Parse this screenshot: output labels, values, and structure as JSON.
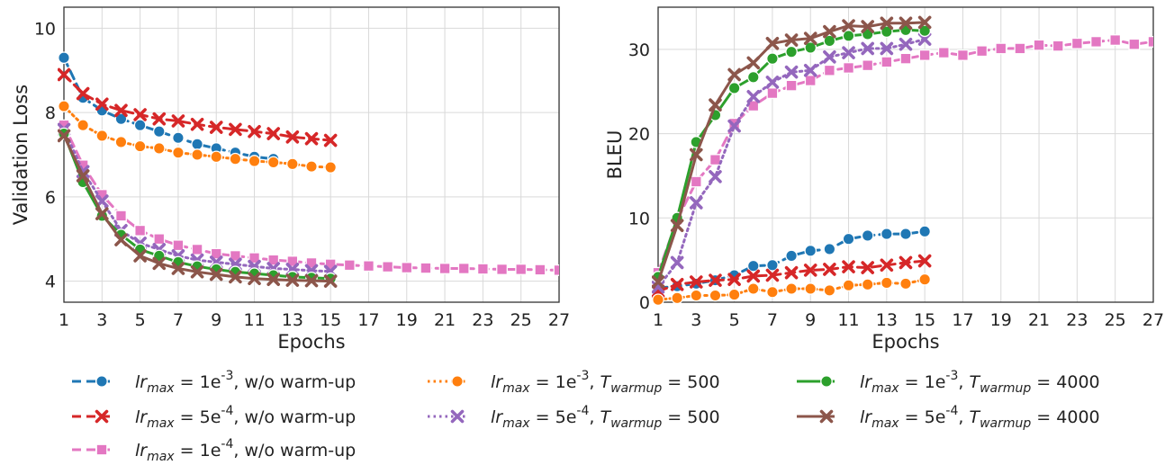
{
  "figure": {
    "legend": [
      {
        "series_id": "lr1e3_nowarm",
        "label": "lr_max = 1e^-3, w/o warm-up",
        "color": "#1f77b4",
        "marker": "circle",
        "dash": "dashed"
      },
      {
        "series_id": "lr5e4_nowarm",
        "label": "lr_max = 5e^-4, w/o warm-up",
        "color": "#d62728",
        "marker": "x",
        "dash": "dashed"
      },
      {
        "series_id": "lr1e4_nowarm",
        "label": "lr_max = 1e^-4, w/o warm-up",
        "color": "#e377c2",
        "marker": "square",
        "dash": "dashed"
      },
      {
        "series_id": "lr1e3_warm500",
        "label": "lr_max = 1e^-3, T_warmup = 500",
        "color": "#ff7f0e",
        "marker": "circle",
        "dash": "dotted"
      },
      {
        "series_id": "lr5e4_warm500",
        "label": "lr_max = 5e^-4, T_warmup = 500",
        "color": "#9467bd",
        "marker": "x",
        "dash": "dotted"
      },
      {
        "series_id": "lr1e3_warm4000",
        "label": "lr_max = 1e^-3, T_warmup = 4000",
        "color": "#2ca02c",
        "marker": "circle",
        "dash": "solid"
      },
      {
        "series_id": "lr5e4_warm4000",
        "label": "lr_max = 5e^-4, T_warmup = 4000",
        "color": "#8c564b",
        "marker": "x",
        "dash": "solid"
      }
    ]
  },
  "chart_data": [
    {
      "type": "line",
      "xlabel": "Epochs",
      "ylabel": "Validation Loss",
      "xlim": [
        1,
        27
      ],
      "ylim": [
        3.5,
        10.5
      ],
      "xticks": [
        1,
        3,
        5,
        7,
        9,
        11,
        13,
        15,
        17,
        19,
        21,
        23,
        25,
        27
      ],
      "yticks": [
        4,
        6,
        8,
        10
      ],
      "grid": true,
      "series": [
        {
          "series_id": "lr1e3_nowarm",
          "x": [
            1,
            2,
            3,
            4,
            5,
            6,
            7,
            8,
            9,
            10,
            11,
            12
          ],
          "y": [
            9.3,
            8.35,
            8.05,
            7.85,
            7.7,
            7.55,
            7.4,
            7.25,
            7.15,
            7.05,
            6.95,
            6.9
          ]
        },
        {
          "series_id": "lr5e4_nowarm",
          "x": [
            1,
            2,
            3,
            4,
            5,
            6,
            7,
            8,
            9,
            10,
            11,
            12,
            13,
            14,
            15
          ],
          "y": [
            8.9,
            8.45,
            8.2,
            8.05,
            7.95,
            7.85,
            7.8,
            7.72,
            7.65,
            7.6,
            7.55,
            7.5,
            7.42,
            7.38,
            7.34
          ]
        },
        {
          "series_id": "lr1e4_nowarm",
          "x": [
            1,
            2,
            3,
            4,
            5,
            6,
            7,
            8,
            9,
            10,
            11,
            12,
            13,
            14,
            15,
            16,
            17,
            18,
            19,
            20,
            21,
            22,
            23,
            24,
            25,
            26,
            27
          ],
          "y": [
            7.7,
            6.75,
            6.05,
            5.55,
            5.2,
            5.0,
            4.85,
            4.75,
            4.65,
            4.6,
            4.55,
            4.5,
            4.47,
            4.43,
            4.4,
            4.38,
            4.36,
            4.34,
            4.32,
            4.31,
            4.3,
            4.3,
            4.29,
            4.28,
            4.28,
            4.27,
            4.26
          ]
        },
        {
          "series_id": "lr1e3_warm500",
          "x": [
            1,
            2,
            3,
            4,
            5,
            6,
            7,
            8,
            9,
            10,
            11,
            12,
            13,
            14,
            15
          ],
          "y": [
            8.15,
            7.7,
            7.45,
            7.3,
            7.2,
            7.15,
            7.05,
            7.0,
            6.95,
            6.9,
            6.85,
            6.82,
            6.78,
            6.72,
            6.7
          ]
        },
        {
          "series_id": "lr5e4_warm500",
          "x": [
            1,
            2,
            3,
            4,
            5,
            6,
            7,
            8,
            9,
            10,
            11,
            12,
            13,
            14,
            15
          ],
          "y": [
            7.6,
            6.6,
            5.9,
            5.2,
            4.9,
            4.75,
            4.6,
            4.5,
            4.45,
            4.4,
            4.35,
            4.3,
            4.28,
            4.25,
            4.23
          ]
        },
        {
          "series_id": "lr1e3_warm4000",
          "x": [
            1,
            2,
            3,
            4,
            5,
            6,
            7,
            8,
            9,
            10,
            11,
            12,
            13,
            14,
            15
          ],
          "y": [
            7.5,
            6.35,
            5.55,
            5.1,
            4.75,
            4.6,
            4.45,
            4.35,
            4.28,
            4.22,
            4.18,
            4.14,
            4.1,
            4.08,
            4.06
          ]
        },
        {
          "series_id": "lr5e4_warm4000",
          "x": [
            1,
            2,
            3,
            4,
            5,
            6,
            7,
            8,
            9,
            10,
            11,
            12,
            13,
            14,
            15
          ],
          "y": [
            7.45,
            6.5,
            5.6,
            4.98,
            4.6,
            4.42,
            4.3,
            4.22,
            4.16,
            4.1,
            4.06,
            4.04,
            4.02,
            4.01,
            4.0
          ]
        }
      ]
    },
    {
      "type": "line",
      "xlabel": "Epochs",
      "ylabel": "BLEU",
      "xlim": [
        1,
        27
      ],
      "ylim": [
        0,
        35
      ],
      "xticks": [
        1,
        3,
        5,
        7,
        9,
        11,
        13,
        15,
        17,
        19,
        21,
        23,
        25,
        27
      ],
      "yticks": [
        0,
        10,
        20,
        30
      ],
      "grid": true,
      "series": [
        {
          "series_id": "lr1e3_nowarm",
          "x": [
            1,
            2,
            3,
            4,
            5,
            6,
            7,
            8,
            9,
            10,
            11,
            12,
            13,
            14,
            15
          ],
          "y": [
            1.7,
            1.9,
            2.2,
            2.6,
            3.2,
            4.3,
            4.4,
            5.5,
            6.1,
            6.3,
            7.5,
            7.9,
            8.1,
            8.1,
            8.4
          ]
        },
        {
          "series_id": "lr5e4_nowarm",
          "x": [
            1,
            2,
            3,
            4,
            5,
            6,
            7,
            8,
            9,
            10,
            11,
            12,
            13,
            14,
            15
          ],
          "y": [
            1.3,
            2.1,
            2.4,
            2.6,
            2.7,
            3.1,
            3.2,
            3.5,
            3.8,
            3.9,
            4.2,
            4.1,
            4.4,
            4.7,
            4.9
          ]
        },
        {
          "series_id": "lr1e4_nowarm",
          "x": [
            1,
            2,
            3,
            4,
            5,
            6,
            7,
            8,
            9,
            10,
            11,
            12,
            13,
            14,
            15,
            16,
            17,
            18,
            19,
            20,
            21,
            22,
            23,
            24,
            25,
            26,
            27
          ],
          "y": [
            3.5,
            9.8,
            14.3,
            16.9,
            21.2,
            23.3,
            24.8,
            25.7,
            26.3,
            27.5,
            27.8,
            28.1,
            28.5,
            28.9,
            29.3,
            29.6,
            29.3,
            29.8,
            30.1,
            30.1,
            30.5,
            30.4,
            30.7,
            30.9,
            31.1,
            30.6,
            30.9
          ]
        },
        {
          "series_id": "lr1e3_warm500",
          "x": [
            1,
            2,
            3,
            4,
            5,
            6,
            7,
            8,
            9,
            10,
            11,
            12,
            13,
            14,
            15
          ],
          "y": [
            0.3,
            0.5,
            0.8,
            0.8,
            0.9,
            1.6,
            1.2,
            1.6,
            1.6,
            1.4,
            2.0,
            2.1,
            2.3,
            2.2,
            2.7
          ]
        },
        {
          "series_id": "lr5e4_warm500",
          "x": [
            1,
            2,
            3,
            4,
            5,
            6,
            7,
            8,
            9,
            10,
            11,
            12,
            13,
            14,
            15
          ],
          "y": [
            1.8,
            4.7,
            11.8,
            14.9,
            20.9,
            24.4,
            26.1,
            27.3,
            27.5,
            29.1,
            29.6,
            30.1,
            30.1,
            30.6,
            31.2
          ]
        },
        {
          "series_id": "lr1e3_warm4000",
          "x": [
            1,
            2,
            3,
            4,
            5,
            6,
            7,
            8,
            9,
            10,
            11,
            12,
            13,
            14,
            15
          ],
          "y": [
            3.0,
            10.0,
            19.0,
            22.2,
            25.4,
            26.7,
            28.9,
            29.7,
            30.2,
            31.0,
            31.6,
            31.8,
            32.1,
            32.3,
            32.2
          ]
        },
        {
          "series_id": "lr5e4_warm4000",
          "x": [
            1,
            2,
            3,
            4,
            5,
            6,
            7,
            8,
            9,
            10,
            11,
            12,
            13,
            14,
            15
          ],
          "y": [
            2.4,
            9.1,
            17.5,
            23.4,
            27.0,
            28.4,
            30.7,
            31.1,
            31.3,
            32.1,
            32.8,
            32.7,
            33.1,
            33.1,
            33.2
          ]
        }
      ]
    }
  ]
}
